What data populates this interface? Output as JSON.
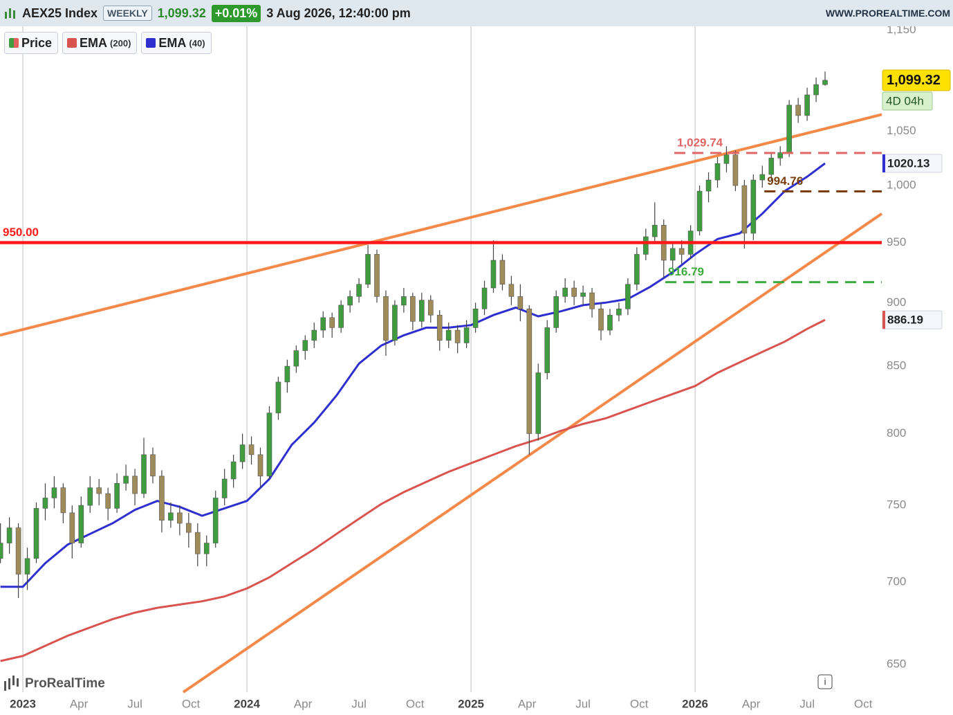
{
  "chart_data": {
    "type": "candlestick",
    "title": "AEX25 Index",
    "interval": "WEEKLY",
    "last": {
      "value": 1099.32,
      "label": "1,099.32"
    },
    "change": "+0.01%",
    "date": "3 Aug 2026, 12:40:00 pm",
    "source": "WWW.PROREALTIME.COM",
    "brand": "ProRealTime",
    "countdown": "4D 04h",
    "log_scale": true,
    "grid": true,
    "up_color": "#3f9c3f",
    "down_color": "#a08c5a",
    "xlim": [
      2022.898,
      2026.833
    ],
    "ylim": [
      634,
      1154
    ],
    "xticks": [
      2023,
      {
        "value": 2023.25,
        "label": "Apr"
      },
      {
        "value": 2023.5,
        "label": "Jul"
      },
      {
        "value": 2023.75,
        "label": "Oct"
      },
      2024,
      {
        "value": 2024.25,
        "label": "Apr"
      },
      {
        "value": 2024.5,
        "label": "Jul"
      },
      {
        "value": 2024.75,
        "label": "Oct"
      },
      2025,
      {
        "value": 2025.25,
        "label": "Apr"
      },
      {
        "value": 2025.5,
        "label": "Jul"
      },
      {
        "value": 2025.75,
        "label": "Oct"
      },
      2026,
      {
        "value": 2026.25,
        "label": "Apr"
      },
      {
        "value": 2026.5,
        "label": "Jul"
      },
      {
        "value": 2026.75,
        "label": "Oct"
      }
    ],
    "yticks": [
      650,
      700,
      750,
      800,
      850,
      900,
      950,
      {
        "value": 1000,
        "label": "1,000"
      },
      {
        "value": 1050,
        "label": "1,050"
      },
      {
        "value": 1150,
        "label": "1,150"
      }
    ],
    "series": [
      {
        "name": "Price",
        "x": [
          2022.9,
          2022.94,
          2022.98,
          2023.02,
          2023.06,
          2023.1,
          2023.14,
          2023.18,
          2023.22,
          2023.26,
          2023.3,
          2023.34,
          2023.38,
          2023.42,
          2023.46,
          2023.5,
          2023.54,
          2023.58,
          2023.62,
          2023.66,
          2023.7,
          2023.74,
          2023.78,
          2023.82,
          2023.86,
          2023.9,
          2023.94,
          2023.98,
          2024.02,
          2024.06,
          2024.1,
          2024.14,
          2024.18,
          2024.22,
          2024.26,
          2024.3,
          2024.34,
          2024.38,
          2024.42,
          2024.46,
          2024.5,
          2024.54,
          2024.58,
          2024.62,
          2024.66,
          2024.7,
          2024.74,
          2024.78,
          2024.82,
          2024.86,
          2024.9,
          2024.94,
          2024.98,
          2025.02,
          2025.06,
          2025.1,
          2025.14,
          2025.18,
          2025.22,
          2025.26,
          2025.3,
          2025.34,
          2025.38,
          2025.42,
          2025.46,
          2025.5,
          2025.54,
          2025.58,
          2025.62,
          2025.66,
          2025.7,
          2025.74,
          2025.78,
          2025.82,
          2025.86,
          2025.9,
          2025.94,
          2025.98,
          2026.02,
          2026.06,
          2026.1,
          2026.14,
          2026.18,
          2026.22,
          2026.26,
          2026.3,
          2026.34,
          2026.38,
          2026.42,
          2026.46,
          2026.5,
          2026.54,
          2026.58
        ],
        "ohlc": [
          [
            715,
            738,
            712,
            725
          ],
          [
            725,
            742,
            718,
            735
          ],
          [
            735,
            738,
            690,
            705
          ],
          [
            705,
            722,
            695,
            715
          ],
          [
            715,
            752,
            712,
            748
          ],
          [
            748,
            765,
            740,
            755
          ],
          [
            755,
            770,
            748,
            762
          ],
          [
            762,
            765,
            738,
            745
          ],
          [
            745,
            750,
            715,
            725
          ],
          [
            725,
            756,
            722,
            750
          ],
          [
            750,
            770,
            745,
            762
          ],
          [
            762,
            768,
            750,
            758
          ],
          [
            758,
            762,
            740,
            748
          ],
          [
            748,
            772,
            745,
            765
          ],
          [
            765,
            778,
            760,
            770
          ],
          [
            770,
            775,
            750,
            758
          ],
          [
            758,
            797,
            755,
            785
          ],
          [
            785,
            790,
            765,
            770
          ],
          [
            770,
            774,
            732,
            740
          ],
          [
            740,
            752,
            735,
            745
          ],
          [
            745,
            750,
            730,
            738
          ],
          [
            738,
            745,
            722,
            732
          ],
          [
            732,
            738,
            710,
            718
          ],
          [
            718,
            730,
            710,
            725
          ],
          [
            725,
            760,
            722,
            755
          ],
          [
            755,
            775,
            750,
            768
          ],
          [
            768,
            785,
            762,
            780
          ],
          [
            780,
            800,
            775,
            792
          ],
          [
            792,
            798,
            778,
            785
          ],
          [
            785,
            790,
            762,
            770
          ],
          [
            770,
            820,
            768,
            815
          ],
          [
            815,
            842,
            810,
            838
          ],
          [
            838,
            855,
            830,
            850
          ],
          [
            850,
            866,
            845,
            862
          ],
          [
            862,
            874,
            855,
            870
          ],
          [
            870,
            884,
            864,
            878
          ],
          [
            878,
            893,
            872,
            888
          ],
          [
            888,
            892,
            872,
            880
          ],
          [
            880,
            902,
            876,
            898
          ],
          [
            898,
            910,
            892,
            905
          ],
          [
            905,
            920,
            900,
            915
          ],
          [
            915,
            948,
            912,
            940
          ],
          [
            940,
            944,
            900,
            905
          ],
          [
            905,
            910,
            858,
            870
          ],
          [
            870,
            902,
            866,
            898
          ],
          [
            898,
            912,
            892,
            905
          ],
          [
            905,
            908,
            878,
            885
          ],
          [
            885,
            908,
            880,
            902
          ],
          [
            902,
            906,
            884,
            890
          ],
          [
            890,
            894,
            862,
            870
          ],
          [
            870,
            884,
            864,
            878
          ],
          [
            878,
            882,
            860,
            868
          ],
          [
            868,
            886,
            864,
            880
          ],
          [
            880,
            900,
            876,
            895
          ],
          [
            895,
            918,
            890,
            912
          ],
          [
            912,
            952,
            908,
            935
          ],
          [
            935,
            940,
            910,
            915
          ],
          [
            915,
            922,
            898,
            905
          ],
          [
            905,
            915,
            885,
            895
          ],
          [
            895,
            898,
            785,
            800
          ],
          [
            800,
            852,
            795,
            845
          ],
          [
            845,
            886,
            840,
            880
          ],
          [
            880,
            910,
            876,
            905
          ],
          [
            905,
            920,
            900,
            912
          ],
          [
            912,
            918,
            898,
            905
          ],
          [
            905,
            914,
            898,
            908
          ],
          [
            908,
            912,
            888,
            895
          ],
          [
            895,
            900,
            870,
            878
          ],
          [
            878,
            895,
            874,
            890
          ],
          [
            890,
            900,
            885,
            895
          ],
          [
            895,
            920,
            890,
            915
          ],
          [
            915,
            946,
            910,
            940
          ],
          [
            940,
            962,
            935,
            955
          ],
          [
            955,
            985,
            950,
            965
          ],
          [
            965,
            970,
            920,
            935
          ],
          [
            935,
            950,
            928,
            945
          ],
          [
            945,
            952,
            932,
            940
          ],
          [
            940,
            965,
            936,
            960
          ],
          [
            960,
            1000,
            956,
            995
          ],
          [
            995,
            1012,
            985,
            1005
          ],
          [
            1005,
            1026,
            998,
            1020
          ],
          [
            1020,
            1036,
            1012,
            1028
          ],
          [
            1028,
            1032,
            995,
            1000
          ],
          [
            1000,
            1005,
            945,
            958
          ],
          [
            958,
            1010,
            952,
            1005
          ],
          [
            1005,
            1018,
            998,
            1010
          ],
          [
            1010,
            1030,
            1004,
            1025
          ],
          [
            1025,
            1036,
            1018,
            1030
          ],
          [
            1030,
            1080,
            1026,
            1075
          ],
          [
            1075,
            1082,
            1058,
            1065
          ],
          [
            1065,
            1092,
            1060,
            1085
          ],
          [
            1085,
            1102,
            1078,
            1095
          ],
          [
            1095,
            1108,
            1094,
            1099.32
          ]
        ]
      },
      {
        "name": "EMA",
        "param": "(200)",
        "color": "#d9534f",
        "x": [
          2022.9,
          2023.0,
          2023.1,
          2023.2,
          2023.3,
          2023.4,
          2023.5,
          2023.6,
          2023.7,
          2023.8,
          2023.9,
          2024.0,
          2024.1,
          2024.2,
          2024.3,
          2024.4,
          2024.5,
          2024.6,
          2024.7,
          2024.8,
          2024.9,
          2025.0,
          2025.1,
          2025.2,
          2025.3,
          2025.4,
          2025.5,
          2025.6,
          2025.7,
          2025.8,
          2025.9,
          2026.0,
          2026.1,
          2026.2,
          2026.3,
          2026.4,
          2026.5,
          2026.58
        ],
        "values": [
          652,
          655,
          661,
          667,
          672,
          677,
          681,
          684,
          686,
          688,
          691,
          696,
          703,
          712,
          721,
          731,
          741,
          751,
          759,
          766,
          773,
          779,
          785,
          791,
          796,
          802,
          807,
          811,
          817,
          823,
          829,
          835,
          845,
          853,
          861,
          869,
          879,
          886.19
        ]
      },
      {
        "name": "EMA",
        "param": "(40)",
        "color": "#2f2fd0",
        "x": [
          2022.9,
          2023.0,
          2023.1,
          2023.2,
          2023.3,
          2023.4,
          2023.5,
          2023.6,
          2023.7,
          2023.8,
          2023.9,
          2024.0,
          2024.1,
          2024.2,
          2024.3,
          2024.4,
          2024.5,
          2024.6,
          2024.7,
          2024.8,
          2024.9,
          2025.0,
          2025.1,
          2025.2,
          2025.3,
          2025.4,
          2025.5,
          2025.6,
          2025.7,
          2025.8,
          2025.9,
          2026.0,
          2026.1,
          2026.2,
          2026.3,
          2026.4,
          2026.5,
          2026.58
        ],
        "values": [
          697,
          697,
          712,
          724,
          731,
          738,
          747,
          753,
          749,
          743,
          748,
          753,
          768,
          792,
          808,
          828,
          852,
          866,
          874,
          880,
          880,
          882,
          890,
          896,
          889,
          893,
          898,
          900,
          903,
          913,
          925,
          940,
          953,
          958,
          975,
          995,
          1008,
          1020.13
        ]
      }
    ],
    "trendlines": [
      {
        "color": "#f5894a",
        "points": [
          [
            2022.898,
            874
          ],
          [
            2026.833,
            1066
          ]
        ]
      },
      {
        "color": "#f5894a",
        "points": [
          [
            2023.716,
            634
          ],
          [
            2026.833,
            975
          ]
        ]
      }
    ],
    "levels": [
      {
        "value": 950,
        "label": "950.00",
        "color": "#ff1a1a",
        "style": "solid"
      },
      {
        "value": 1029.74,
        "label": "1,029.74",
        "color": "#e06666",
        "style": "dashed",
        "from": 2025.907
      },
      {
        "value": 994.76,
        "label": "994.76",
        "color": "#7a3e0a",
        "style": "dashed",
        "from": 2026.309
      },
      {
        "value": 916.79,
        "label": "916.79",
        "color": "#3cac3c",
        "style": "dashed",
        "from": 2025.867
      }
    ]
  }
}
